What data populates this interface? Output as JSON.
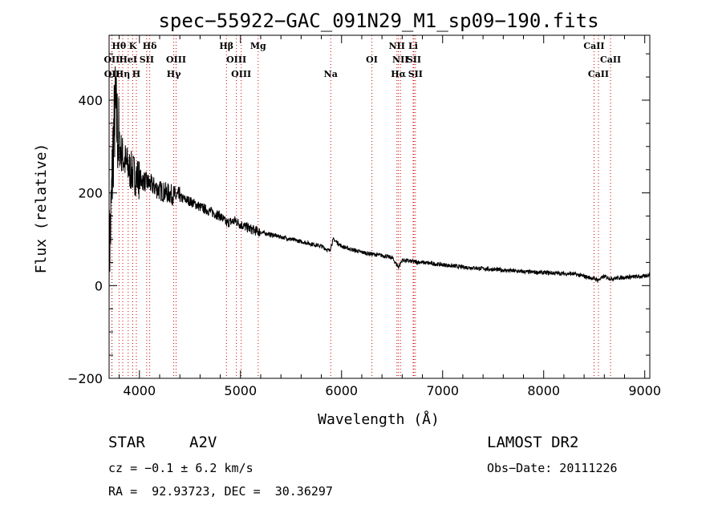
{
  "chart_data": {
    "type": "line",
    "title": "spec−55922−GAC_091N29_M1_sp09−190.fits",
    "xlabel": "Wavelength (Å)",
    "ylabel": "Flux (relative)",
    "xlim": [
      3700,
      9050
    ],
    "ylim": [
      -200,
      540
    ],
    "xticks": [
      4000,
      5000,
      6000,
      7000,
      8000,
      9000
    ],
    "yticks": [
      -200,
      0,
      200,
      400
    ],
    "ytick_labels": [
      "−200",
      "0",
      "200",
      "400"
    ],
    "grid": false,
    "spectrum_anchors": [
      [
        3700,
        60
      ],
      [
        3720,
        150
      ],
      [
        3740,
        300
      ],
      [
        3760,
        380
      ],
      [
        3780,
        340
      ],
      [
        3800,
        300
      ],
      [
        3850,
        270
      ],
      [
        3900,
        250
      ],
      [
        3950,
        240
      ],
      [
        4000,
        230
      ],
      [
        4100,
        220
      ],
      [
        4200,
        205
      ],
      [
        4340,
        195
      ],
      [
        4400,
        190
      ],
      [
        4500,
        182
      ],
      [
        4600,
        170
      ],
      [
        4700,
        160
      ],
      [
        4800,
        150
      ],
      [
        4861,
        135
      ],
      [
        4950,
        140
      ],
      [
        5000,
        132
      ],
      [
        5100,
        122
      ],
      [
        5200,
        115
      ],
      [
        5300,
        110
      ],
      [
        5400,
        105
      ],
      [
        5500,
        100
      ],
      [
        5600,
        95
      ],
      [
        5700,
        90
      ],
      [
        5800,
        85
      ],
      [
        5880,
        75
      ],
      [
        5920,
        100
      ],
      [
        6000,
        85
      ],
      [
        6100,
        78
      ],
      [
        6200,
        72
      ],
      [
        6300,
        68
      ],
      [
        6400,
        65
      ],
      [
        6500,
        60
      ],
      [
        6563,
        40
      ],
      [
        6600,
        55
      ],
      [
        6700,
        52
      ],
      [
        6800,
        50
      ],
      [
        7000,
        45
      ],
      [
        7200,
        40
      ],
      [
        7500,
        35
      ],
      [
        7800,
        30
      ],
      [
        8000,
        28
      ],
      [
        8300,
        25
      ],
      [
        8498,
        15
      ],
      [
        8542,
        12
      ],
      [
        8600,
        20
      ],
      [
        8662,
        15
      ],
      [
        8800,
        18
      ],
      [
        9000,
        20
      ],
      [
        9050,
        25
      ]
    ],
    "spectral_lines": [
      {
        "name": "Hθ",
        "wavelength": 3798,
        "row": 0
      },
      {
        "name": "K",
        "wavelength": 3934,
        "row": 0
      },
      {
        "name": "Hδ",
        "wavelength": 4102,
        "row": 0
      },
      {
        "name": "Hβ",
        "wavelength": 4861,
        "row": 0
      },
      {
        "name": "Mg",
        "wavelength": 5175,
        "row": 0
      },
      {
        "name": "NII",
        "wavelength": 6548,
        "row": 0
      },
      {
        "name": "Li",
        "wavelength": 6708,
        "row": 0
      },
      {
        "name": "CaII",
        "wavelength": 8498,
        "row": 0
      },
      {
        "name": "OII",
        "wavelength": 3727,
        "row": 1
      },
      {
        "name": "HeI",
        "wavelength": 3889,
        "row": 1
      },
      {
        "name": "SII",
        "wavelength": 4072,
        "row": 1
      },
      {
        "name": "OIII",
        "wavelength": 4363,
        "row": 1
      },
      {
        "name": "OIII",
        "wavelength": 4959,
        "row": 1
      },
      {
        "name": "OI",
        "wavelength": 6300,
        "row": 1
      },
      {
        "name": "NII",
        "wavelength": 6583,
        "row": 1
      },
      {
        "name": "SII",
        "wavelength": 6716,
        "row": 1
      },
      {
        "name": "CaII",
        "wavelength": 8662,
        "row": 1
      },
      {
        "name": "OII",
        "wavelength": 3729,
        "row": 2
      },
      {
        "name": "Hη",
        "wavelength": 3835,
        "row": 2
      },
      {
        "name": "H",
        "wavelength": 3970,
        "row": 2
      },
      {
        "name": "Hγ",
        "wavelength": 4340,
        "row": 2
      },
      {
        "name": "OIII",
        "wavelength": 5007,
        "row": 2
      },
      {
        "name": "Na",
        "wavelength": 5893,
        "row": 2
      },
      {
        "name": "Hα",
        "wavelength": 6563,
        "row": 2
      },
      {
        "name": "SII",
        "wavelength": 6731,
        "row": 2
      },
      {
        "name": "CaII",
        "wavelength": 8542,
        "row": 2
      }
    ],
    "series_color": "#000000",
    "marker_color": "#cc0000"
  },
  "info": {
    "object_class": "STAR",
    "subclass": "A2V",
    "survey": "LAMOST DR2",
    "redshift": "cz = −0.1 ± 6.2 km/s",
    "obs_date": "Obs−Date: 20111226",
    "coords": "RA =  92.93723, DEC =  30.36297"
  }
}
